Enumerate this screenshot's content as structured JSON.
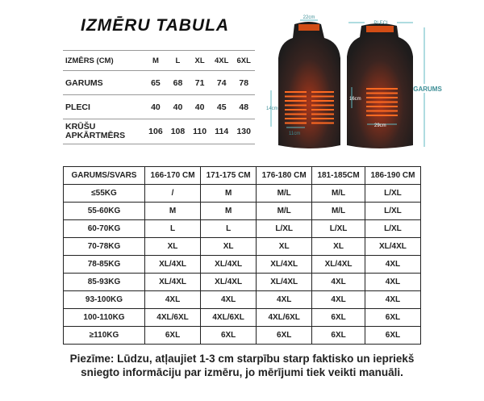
{
  "title": "IZMĒRU TABULA",
  "size_table": {
    "headers": [
      "IZMĒRS (CM)",
      "M",
      "L",
      "XL",
      "4XL",
      "6XL"
    ],
    "rows": [
      {
        "label": "GARUMS",
        "values": [
          "65",
          "68",
          "71",
          "74",
          "78"
        ]
      },
      {
        "label": "PLECI",
        "values": [
          "40",
          "40",
          "40",
          "45",
          "48"
        ]
      },
      {
        "label_line1": "KRŪŠU",
        "label_line2": "APKĀRTMĒRS",
        "values": [
          "106",
          "108",
          "110",
          "114",
          "130"
        ]
      }
    ]
  },
  "vest_diagram": {
    "collar": "22cm",
    "left_height": "14cm",
    "left_width": "11cm",
    "shoulders": "PLECI",
    "length": "GARUMS",
    "back_height": "16cm",
    "back_width": "29cm",
    "accent_color": "#ff5a14",
    "dimension_color": "#5fb8c0"
  },
  "fit_table": {
    "headers": [
      "GARUMS/SVARS",
      "166-170 CM",
      "171-175 CM",
      "176-180 CM",
      "181-185CM",
      "186-190 CM"
    ],
    "rows": [
      [
        "≤55KG",
        "/",
        "M",
        "M/L",
        "M/L",
        "L/XL"
      ],
      [
        "55-60KG",
        "M",
        "M",
        "M/L",
        "M/L",
        "L/XL"
      ],
      [
        "60-70KG",
        "L",
        "L",
        "L/XL",
        "L/XL",
        "L/XL"
      ],
      [
        "70-78KG",
        "XL",
        "XL",
        "XL",
        "XL",
        "XL/4XL"
      ],
      [
        "78-85KG",
        "XL/4XL",
        "XL/4XL",
        "XL/4XL",
        "XL/4XL",
        "4XL"
      ],
      [
        "85-93KG",
        "XL/4XL",
        "XL/4XL",
        "XL/4XL",
        "4XL",
        "4XL"
      ],
      [
        "93-100KG",
        "4XL",
        "4XL",
        "4XL",
        "4XL",
        "4XL"
      ],
      [
        "100-110KG",
        "4XL/6XL",
        "4XL/6XL",
        "4XL/6XL",
        "6XL",
        "6XL"
      ],
      [
        "≥110KG",
        "6XL",
        "6XL",
        "6XL",
        "6XL",
        "6XL"
      ]
    ]
  },
  "note_line1": "Piezīme: Lūdzu, atļaujiet 1-3 cm starpību starp faktisko un iepriekš",
  "note_line2": "sniegto informāciju par izmēru, jo mērījumi tiek veikti manuāli."
}
